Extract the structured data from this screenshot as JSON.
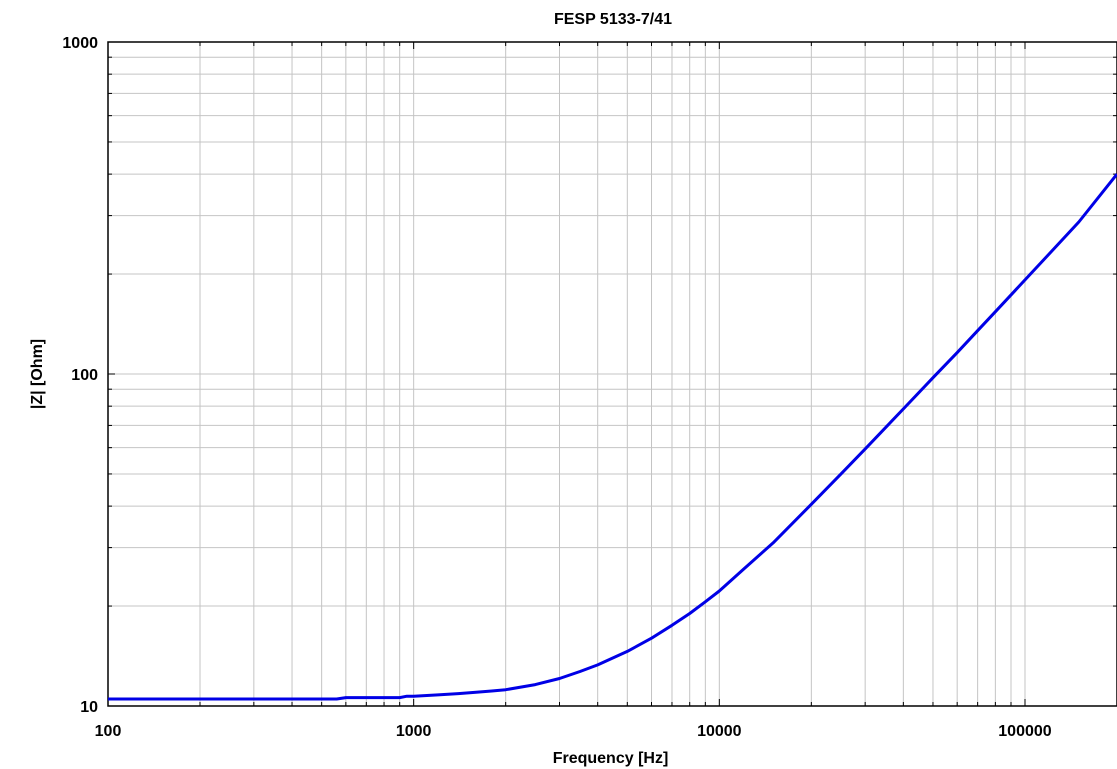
{
  "chart_data": {
    "type": "line",
    "title": "",
    "subtitle": "FESP 5133-7/41",
    "xlabel": "Frequency [Hz]",
    "ylabel": "|Z| [Ohm]",
    "xscale": "log",
    "yscale": "log",
    "xlim": [
      100,
      200000
    ],
    "ylim": [
      10,
      1000
    ],
    "grid": true,
    "x_tick_labels": [
      "100",
      "1000",
      "10000",
      "100000"
    ],
    "y_tick_labels": [
      "10",
      "100",
      "1000"
    ],
    "series": [
      {
        "color": "#0000e6",
        "x": [
          100,
          150,
          200,
          300,
          400,
          500,
          560,
          600,
          700,
          800,
          900,
          950,
          1000,
          1200,
          1400,
          1600,
          1800,
          2000,
          2500,
          3000,
          3500,
          4000,
          5000,
          6000,
          7000,
          8000,
          9000,
          10000,
          12000,
          15000,
          20000,
          25000,
          30000,
          40000,
          50000,
          60000,
          70000,
          80000,
          100000,
          120000,
          150000,
          200000
        ],
        "y": [
          10.5,
          10.5,
          10.5,
          10.5,
          10.5,
          10.5,
          10.5,
          10.6,
          10.6,
          10.6,
          10.6,
          10.7,
          10.7,
          10.8,
          10.9,
          11.0,
          11.1,
          11.2,
          11.6,
          12.1,
          12.7,
          13.3,
          14.6,
          16.0,
          17.5,
          19.0,
          20.6,
          22.2,
          25.8,
          31.0,
          40.5,
          50.0,
          59.5,
          78.5,
          97.5,
          116.0,
          135.0,
          154.0,
          192.0,
          230.0,
          287.0,
          400.0
        ]
      }
    ]
  }
}
